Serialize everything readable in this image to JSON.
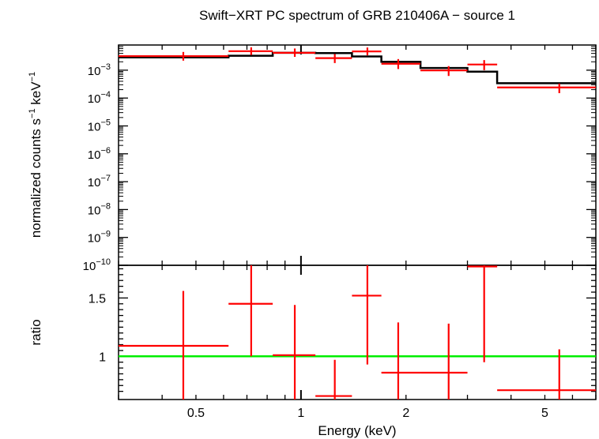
{
  "chart_data": [
    {
      "type": "line",
      "title": "Swift−XRT PC spectrum of GRB 210406A − source 1",
      "ylabel_text": "normalized counts s",
      "ylabel_sup1": "−1",
      "ylabel_mid": " keV",
      "ylabel_sup2": "−1",
      "x_scale": "log",
      "y_scale": "log",
      "xlim": [
        0.3,
        7.0
      ],
      "ylim": [
        1e-10,
        0.008
      ],
      "ytick_labels": [
        {
          "base": "10",
          "exp": "−3",
          "value": 0.001
        },
        {
          "base": "10",
          "exp": "−4",
          "value": 0.0001
        },
        {
          "base": "10",
          "exp": "−5",
          "value": 1e-05
        },
        {
          "base": "10",
          "exp": "−6",
          "value": 1e-06
        },
        {
          "base": "10",
          "exp": "−7",
          "value": 1e-07
        },
        {
          "base": "10",
          "exp": "−8",
          "value": 1e-08
        },
        {
          "base": "10",
          "exp": "−9",
          "value": 1e-09
        },
        {
          "base": "10",
          "exp": "−10",
          "value": 1e-10
        }
      ],
      "series": [
        {
          "color": "#ff0000",
          "style": "errorbars",
          "points": [
            {
              "x": 0.46,
              "xlo": 0.3,
              "xhi": 0.62,
              "y": 0.0032,
              "ylo": 0.0022,
              "yhi": 0.0045
            },
            {
              "x": 0.72,
              "xlo": 0.62,
              "xhi": 0.83,
              "y": 0.0048,
              "ylo": 0.0035,
              "yhi": 0.0066
            },
            {
              "x": 0.96,
              "xlo": 0.83,
              "xhi": 1.1,
              "y": 0.0042,
              "ylo": 0.003,
              "yhi": 0.006
            },
            {
              "x": 1.25,
              "xlo": 1.1,
              "xhi": 1.4,
              "y": 0.0027,
              "ylo": 0.0018,
              "yhi": 0.0038
            },
            {
              "x": 1.55,
              "xlo": 1.4,
              "xhi": 1.7,
              "y": 0.0047,
              "ylo": 0.0034,
              "yhi": 0.0065
            },
            {
              "x": 1.9,
              "xlo": 1.7,
              "xhi": 2.2,
              "y": 0.0017,
              "ylo": 0.0011,
              "yhi": 0.0025
            },
            {
              "x": 2.65,
              "xlo": 2.2,
              "xhi": 3.0,
              "y": 0.00098,
              "ylo": 0.00062,
              "yhi": 0.0014
            },
            {
              "x": 3.35,
              "xlo": 3.0,
              "xhi": 3.65,
              "y": 0.0016,
              "ylo": 0.001,
              "yhi": 0.0023
            },
            {
              "x": 5.5,
              "xlo": 3.65,
              "xhi": 7.0,
              "y": 0.00024,
              "ylo": 0.00015,
              "yhi": 0.00033
            }
          ]
        },
        {
          "color": "#000000",
          "style": "step",
          "edges": [
            0.3,
            0.62,
            0.83,
            1.1,
            1.4,
            1.7,
            2.2,
            3.0,
            3.65,
            7.0
          ],
          "values": [
            0.0029,
            0.0033,
            0.0042,
            0.0041,
            0.0031,
            0.002,
            0.0012,
            0.00088,
            0.00034
          ]
        }
      ]
    },
    {
      "type": "line",
      "xlabel": "Energy (keV)",
      "ylabel": "ratio",
      "x_scale": "log",
      "xlim": [
        0.3,
        7.0
      ],
      "ylim": [
        0.63,
        1.78
      ],
      "xtick_labels": [
        {
          "label": "0.5",
          "value": 0.5
        },
        {
          "label": "1",
          "value": 1
        },
        {
          "label": "2",
          "value": 2
        },
        {
          "label": "5",
          "value": 5
        }
      ],
      "ytick_labels": [
        {
          "label": "1",
          "value": 1.0
        },
        {
          "label": "1.5",
          "value": 1.5
        }
      ],
      "reference_line": {
        "y": 1.0,
        "color": "#00ee00"
      },
      "series": [
        {
          "color": "#ff0000",
          "style": "errorbars",
          "points": [
            {
              "x": 0.46,
              "xlo": 0.3,
              "xhi": 0.62,
              "y": 1.09,
              "ylo": 0.63,
              "yhi": 1.56
            },
            {
              "x": 0.72,
              "xlo": 0.62,
              "xhi": 0.83,
              "y": 1.45,
              "ylo": 1.0,
              "yhi": 1.78
            },
            {
              "x": 0.96,
              "xlo": 0.83,
              "xhi": 1.1,
              "y": 1.01,
              "ylo": 0.63,
              "yhi": 1.44
            },
            {
              "x": 1.25,
              "xlo": 1.1,
              "xhi": 1.4,
              "y": 0.66,
              "ylo": 0.63,
              "yhi": 0.97
            },
            {
              "x": 1.55,
              "xlo": 1.4,
              "xhi": 1.7,
              "y": 1.52,
              "ylo": 0.93,
              "yhi": 1.78
            },
            {
              "x": 1.9,
              "xlo": 1.7,
              "xhi": 2.2,
              "y": 0.86,
              "ylo": 0.63,
              "yhi": 1.29
            },
            {
              "x": 2.65,
              "xlo": 2.2,
              "xhi": 3.0,
              "y": 0.86,
              "ylo": 0.63,
              "yhi": 1.28
            },
            {
              "x": 3.35,
              "xlo": 3.0,
              "xhi": 3.65,
              "y": 1.77,
              "ylo": 0.95,
              "yhi": 1.78
            },
            {
              "x": 5.5,
              "xlo": 3.65,
              "xhi": 7.0,
              "y": 0.71,
              "ylo": 0.63,
              "yhi": 1.06
            }
          ]
        }
      ]
    }
  ]
}
